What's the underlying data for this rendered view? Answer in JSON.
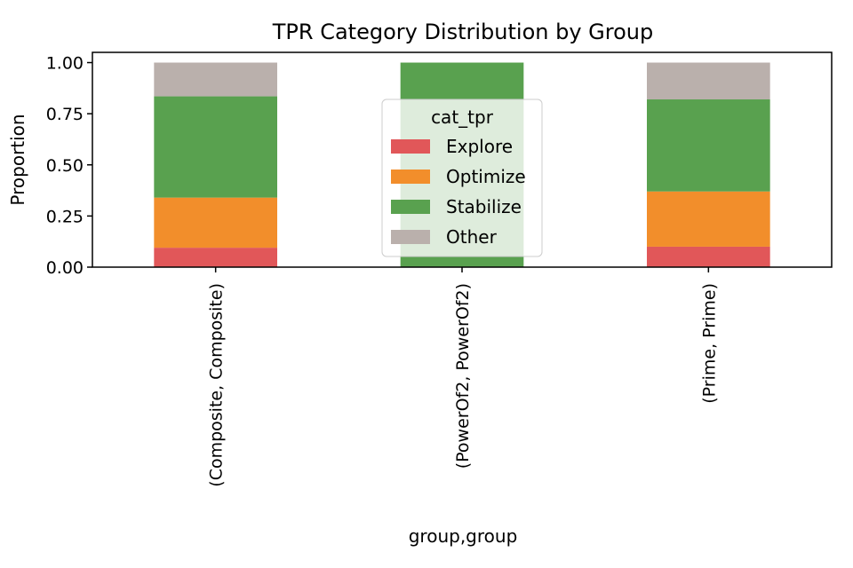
{
  "chart_data": {
    "type": "bar",
    "stacked": true,
    "title": "TPR Category Distribution by Group",
    "xlabel": "group,group",
    "ylabel": "Proportion",
    "ylim": [
      0,
      1.05
    ],
    "yticks": [
      "0.00",
      "0.25",
      "0.50",
      "0.75",
      "1.00"
    ],
    "ytick_values": [
      0,
      0.25,
      0.5,
      0.75,
      1.0
    ],
    "categories": [
      "(Composite, Composite)",
      "(PowerOf2, PowerOf2)",
      "(Prime, Prime)"
    ],
    "series": [
      {
        "name": "Explore",
        "color": "#e15759",
        "values": [
          0.095,
          0.0,
          0.1
        ]
      },
      {
        "name": "Optimize",
        "color": "#f28e2b",
        "values": [
          0.245,
          0.0,
          0.27
        ]
      },
      {
        "name": "Stabilize",
        "color": "#59a14f",
        "values": [
          0.495,
          1.0,
          0.45
        ]
      },
      {
        "name": "Other",
        "color": "#bab0ac",
        "values": [
          0.165,
          0.0,
          0.18
        ]
      }
    ],
    "legend": {
      "title": "cat_tpr",
      "placement": "upper-center"
    },
    "grid": false
  }
}
